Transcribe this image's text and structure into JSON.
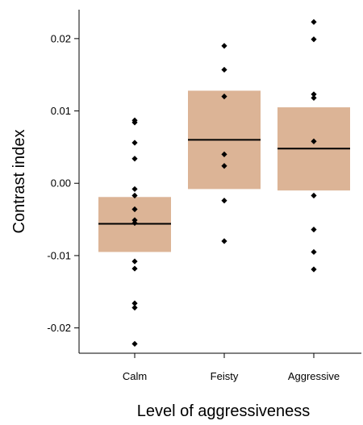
{
  "chart_data": {
    "type": "box",
    "xlabel": "Level of aggressiveness",
    "ylabel": "Contrast index",
    "categories": [
      "Calm",
      "Feisty",
      "Aggressive"
    ],
    "ylim": [
      -0.0235,
      0.024
    ],
    "yticks": [
      -0.02,
      -0.01,
      0.0,
      0.01,
      0.02
    ],
    "ytick_labels": [
      "-0.02",
      "-0.01",
      "0.00",
      "0.01",
      "0.02"
    ],
    "grid": false,
    "box_color": "#dcb496",
    "point_color": "#000000",
    "groups": [
      {
        "name": "Calm",
        "box_low": -0.0095,
        "box_high": -0.0019,
        "median": -0.0056,
        "points": [
          0.0087,
          0.0084,
          0.0056,
          0.0034,
          -0.0008,
          -0.0017,
          -0.0036,
          -0.0051,
          -0.0055,
          -0.0108,
          -0.0118,
          -0.0166,
          -0.0172,
          -0.0222
        ]
      },
      {
        "name": "Feisty",
        "box_low": -0.0008,
        "box_high": 0.0128,
        "median": 0.006,
        "points": [
          0.019,
          0.0157,
          0.012,
          0.004,
          0.0024,
          -0.0024,
          -0.008
        ]
      },
      {
        "name": "Aggressive",
        "box_low": -0.001,
        "box_high": 0.0105,
        "median": 0.0048,
        "points": [
          0.0223,
          0.0199,
          0.0123,
          0.0118,
          0.0058,
          -0.0017,
          -0.0064,
          -0.0095,
          -0.0119
        ]
      }
    ]
  }
}
